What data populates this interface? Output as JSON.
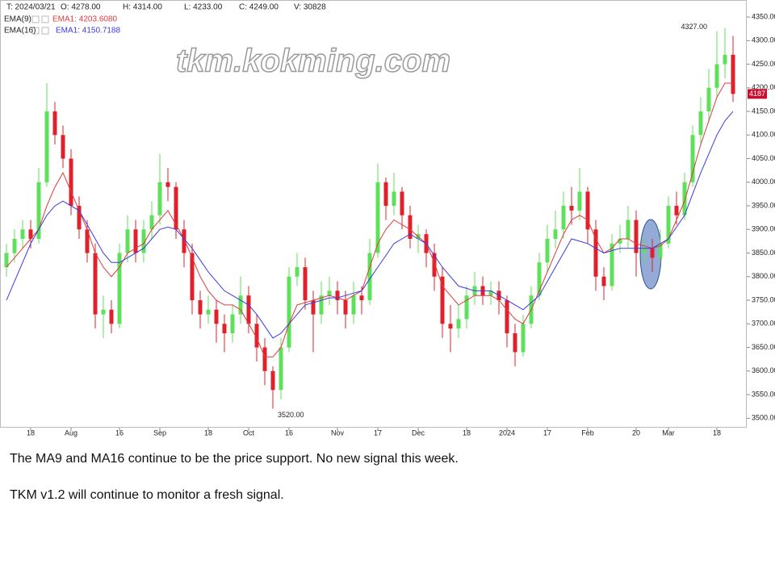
{
  "chart_data": {
    "type": "candlestick",
    "header": [
      "T: 2024/03/21",
      "O: 4278.00",
      "H: 4314.00",
      "L: 4233.00",
      "C: 4249.00",
      "V: 30828"
    ],
    "watermark": "tkm.kokming.com",
    "last_price_label": "4187",
    "annotations": [
      "4327.00",
      "3520.00"
    ],
    "up_color": "#5ee05a",
    "down_color": "#e0202a",
    "x": [
      null,
      null,
      null,
      "18",
      null,
      null,
      null,
      null,
      "Aug",
      null,
      null,
      null,
      null,
      null,
      "16",
      null,
      null,
      null,
      null,
      "Sep",
      null,
      null,
      null,
      null,
      null,
      "18",
      null,
      null,
      null,
      null,
      "Oct",
      null,
      null,
      null,
      null,
      "16",
      null,
      null,
      null,
      null,
      null,
      "Nov",
      null,
      null,
      null,
      null,
      "17",
      null,
      null,
      null,
      null,
      "Dec",
      null,
      null,
      null,
      null,
      null,
      "18",
      null,
      null,
      null,
      null,
      "2024",
      null,
      null,
      null,
      null,
      "17",
      null,
      null,
      null,
      null,
      "Feb",
      null,
      null,
      null,
      null,
      null,
      "20",
      null,
      null,
      null,
      "Mar",
      null,
      null,
      null,
      null,
      null,
      "18",
      null,
      null
    ],
    "open": [
      3820,
      3850,
      3880,
      3900,
      3880,
      4000,
      4150,
      4100,
      4050,
      3950,
      3900,
      3850,
      3720,
      3730,
      3700,
      3850,
      3900,
      3850,
      3900,
      3930,
      4000,
      3990,
      3900,
      3850,
      3750,
      3720,
      3730,
      3700,
      3680,
      3720,
      3760,
      3700,
      3650,
      3600,
      3560,
      3650,
      3800,
      3820,
      3750,
      3720,
      3760,
      3770,
      3750,
      3720,
      3760,
      3750,
      3850,
      4000,
      3950,
      3980,
      3930,
      3880,
      3890,
      3850,
      3800,
      3700,
      3690,
      3710,
      3760,
      3780,
      3760,
      3770,
      3750,
      3680,
      3640,
      3700,
      3760,
      3830,
      3880,
      3900,
      3950,
      3940,
      3980,
      3900,
      3800,
      3780,
      3870,
      3880,
      3920,
      3850,
      3860,
      3840,
      3870,
      3950,
      3930,
      4000,
      4100,
      4150,
      4200,
      4250,
      4270
    ],
    "high": [
      3870,
      3900,
      3920,
      3920,
      4030,
      4210,
      4170,
      4120,
      4070,
      3970,
      3920,
      3870,
      3760,
      3750,
      3870,
      3930,
      3920,
      3920,
      3960,
      4060,
      4030,
      4000,
      3920,
      3870,
      3770,
      3760,
      3750,
      3720,
      3740,
      3800,
      3780,
      3720,
      3670,
      3610,
      3670,
      3820,
      3850,
      3840,
      3770,
      3790,
      3800,
      3790,
      3770,
      3790,
      3780,
      3880,
      4040,
      4010,
      4020,
      3990,
      3950,
      3910,
      3900,
      3870,
      3820,
      3740,
      3740,
      3780,
      3810,
      3800,
      3790,
      3790,
      3760,
      3700,
      3720,
      3780,
      3850,
      3910,
      3940,
      3980,
      3990,
      4030,
      3990,
      3920,
      3820,
      3890,
      3910,
      3950,
      3940,
      3880,
      3880,
      3900,
      3970,
      3980,
      4020,
      4120,
      4180,
      4240,
      4320,
      4327,
      4310
    ],
    "low": [
      3800,
      3830,
      3860,
      3860,
      3870,
      3990,
      4080,
      4030,
      3930,
      3880,
      3830,
      3690,
      3670,
      3680,
      3690,
      3830,
      3830,
      3830,
      3880,
      3910,
      3960,
      3880,
      3820,
      3720,
      3690,
      3700,
      3660,
      3640,
      3660,
      3700,
      3680,
      3620,
      3570,
      3520,
      3540,
      3640,
      3780,
      3730,
      3640,
      3700,
      3740,
      3720,
      3690,
      3700,
      3720,
      3740,
      3840,
      3920,
      3930,
      3900,
      3860,
      3850,
      3820,
      3770,
      3670,
      3640,
      3670,
      3690,
      3740,
      3740,
      3740,
      3720,
      3650,
      3610,
      3630,
      3690,
      3750,
      3810,
      3860,
      3880,
      3910,
      3920,
      3870,
      3770,
      3750,
      3770,
      3850,
      3860,
      3800,
      3830,
      3810,
      3830,
      3860,
      3910,
      3920,
      3990,
      4080,
      4130,
      4180,
      4220,
      4170
    ],
    "close": [
      3850,
      3880,
      3900,
      3880,
      4000,
      4150,
      4100,
      4050,
      3950,
      3900,
      3850,
      3720,
      3730,
      3700,
      3850,
      3900,
      3850,
      3900,
      3930,
      4000,
      3990,
      3900,
      3850,
      3750,
      3720,
      3730,
      3700,
      3680,
      3720,
      3760,
      3700,
      3650,
      3600,
      3560,
      3650,
      3800,
      3820,
      3750,
      3720,
      3760,
      3770,
      3750,
      3720,
      3760,
      3750,
      3850,
      4000,
      3950,
      3980,
      3930,
      3880,
      3890,
      3850,
      3800,
      3700,
      3690,
      3710,
      3760,
      3780,
      3760,
      3770,
      3750,
      3680,
      3640,
      3700,
      3760,
      3830,
      3880,
      3900,
      3950,
      3940,
      3980,
      3900,
      3800,
      3780,
      3870,
      3880,
      3920,
      3850,
      3860,
      3840,
      3870,
      3950,
      3930,
      4000,
      4100,
      4150,
      4200,
      4250,
      4270,
      4187
    ],
    "series": [
      {
        "name": "EMA(9)",
        "label": "EMA1: 4203.6080",
        "color": "#e03a3a",
        "values": [
          3820,
          3840,
          3860,
          3880,
          3900,
          3950,
          3990,
          4020,
          3980,
          3940,
          3900,
          3850,
          3820,
          3800,
          3820,
          3850,
          3860,
          3870,
          3900,
          3920,
          3940,
          3910,
          3880,
          3840,
          3800,
          3770,
          3750,
          3740,
          3740,
          3730,
          3700,
          3670,
          3630,
          3630,
          3650,
          3700,
          3740,
          3745,
          3750,
          3755,
          3760,
          3755,
          3750,
          3760,
          3770,
          3820,
          3870,
          3900,
          3920,
          3910,
          3900,
          3885,
          3870,
          3830,
          3780,
          3760,
          3740,
          3750,
          3760,
          3760,
          3760,
          3750,
          3730,
          3710,
          3700,
          3730,
          3770,
          3810,
          3850,
          3890,
          3920,
          3930,
          3920,
          3880,
          3850,
          3860,
          3880,
          3880,
          3870,
          3865,
          3860,
          3865,
          3880,
          3920,
          3960,
          4020,
          4080,
          4130,
          4180,
          4210,
          4210
        ]
      },
      {
        "name": "EMA(16)",
        "label": "EMA1: 4150.7188",
        "color": "#3a3ae0",
        "values": [
          3750,
          3790,
          3830,
          3870,
          3900,
          3930,
          3950,
          3960,
          3950,
          3940,
          3910,
          3880,
          3850,
          3830,
          3830,
          3840,
          3850,
          3860,
          3880,
          3900,
          3905,
          3900,
          3880,
          3860,
          3835,
          3810,
          3790,
          3770,
          3760,
          3750,
          3740,
          3720,
          3695,
          3670,
          3680,
          3700,
          3720,
          3740,
          3745,
          3750,
          3755,
          3755,
          3760,
          3765,
          3770,
          3795,
          3820,
          3845,
          3870,
          3880,
          3890,
          3880,
          3870,
          3845,
          3820,
          3800,
          3780,
          3775,
          3770,
          3770,
          3770,
          3760,
          3750,
          3740,
          3730,
          3745,
          3760,
          3790,
          3820,
          3850,
          3880,
          3875,
          3870,
          3860,
          3850,
          3855,
          3860,
          3860,
          3860,
          3860,
          3860,
          3870,
          3880,
          3905,
          3930,
          3975,
          4020,
          4060,
          4100,
          4130,
          4150
        ]
      }
    ],
    "ylim": [
      3480,
      4386
    ],
    "yticks": [
      {
        "value": 3500,
        "label": "3500.00"
      },
      {
        "value": 3550,
        "label": "3550.00"
      },
      {
        "value": 3600,
        "label": "3600.00"
      },
      {
        "value": 3650,
        "label": "3650.00"
      },
      {
        "value": 3700,
        "label": "3700.00"
      },
      {
        "value": 3750,
        "label": "3750.00"
      },
      {
        "value": 3800,
        "label": "3800.00"
      },
      {
        "value": 3850,
        "label": "3850.00"
      },
      {
        "value": 3900,
        "label": "3900.00"
      },
      {
        "value": 3950,
        "label": "3950.00"
      },
      {
        "value": 4000,
        "label": "4000.00"
      },
      {
        "value": 4050,
        "label": "4050.00"
      },
      {
        "value": 4100,
        "label": "4100.00"
      },
      {
        "value": 4150,
        "label": "4150.00"
      },
      {
        "value": 4200,
        "label": "4200.00"
      },
      {
        "value": 4250,
        "label": "4250.00"
      },
      {
        "value": 4300,
        "label": "4300.00"
      },
      {
        "value": 4350,
        "label": "4350.00"
      }
    ]
  },
  "caption": [
    "The MA9 and MA16 continue to be the price support. No new signal this week.",
    "TKM v1.2 will continue to monitor a fresh signal."
  ]
}
